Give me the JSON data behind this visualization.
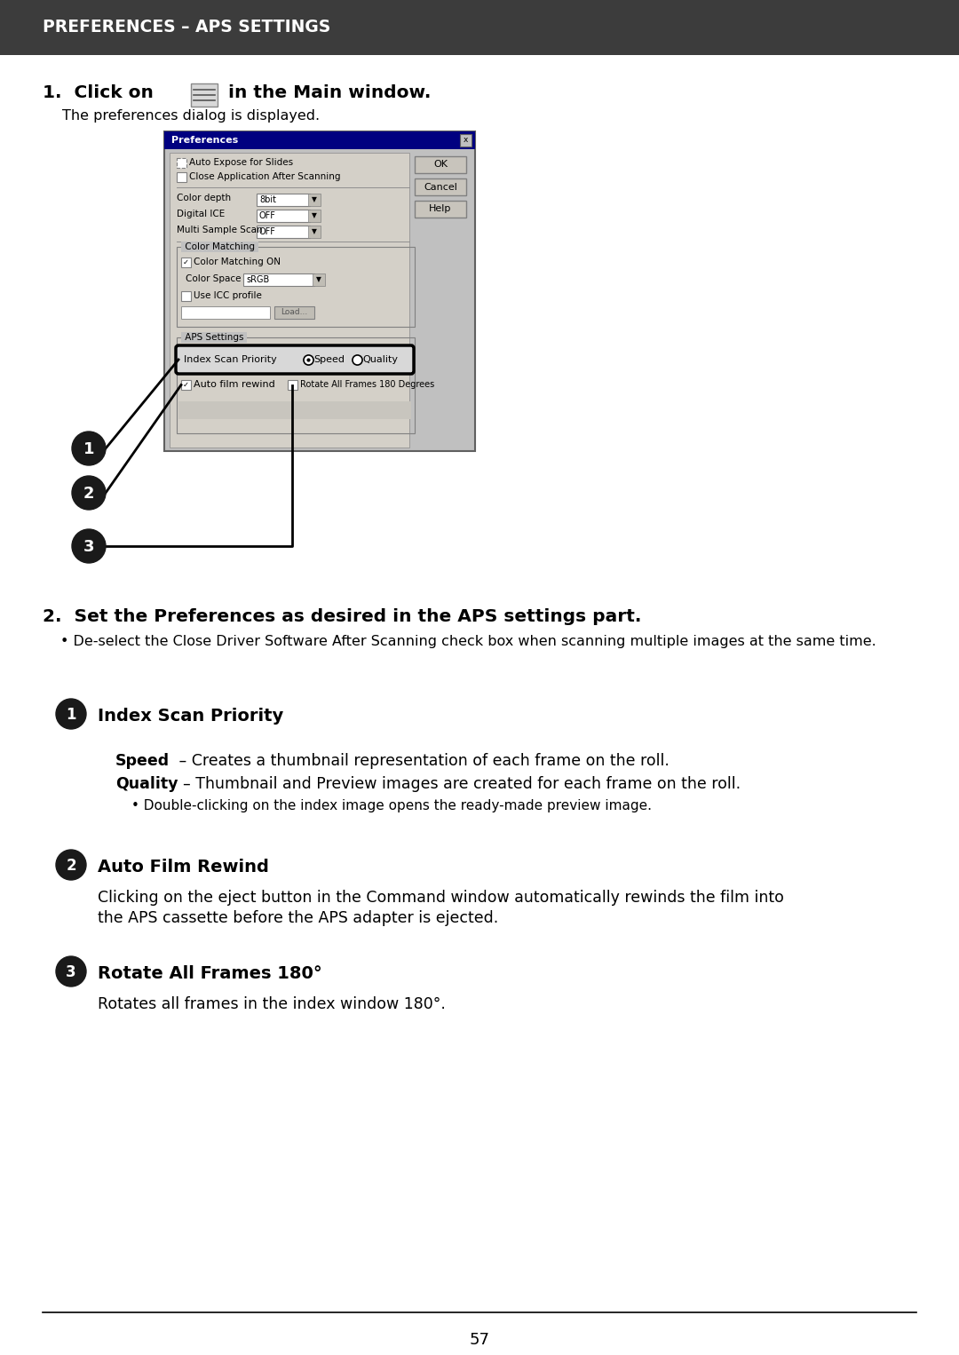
{
  "title": "PREFERENCES – APS SETTINGS",
  "title_bg": "#3c3c3c",
  "title_color": "#ffffff",
  "page_bg": "#ffffff",
  "page_number": "57",
  "step1_text1": "1.  Click on",
  "step1_text2": " in the Main window.",
  "step1_sub": "The preferences dialog is displayed.",
  "step2_text": "2.  Set the Preferences as desired in the APS settings part.",
  "step2_sub": "• De-select the Close Driver Software After Scanning check box when scanning multiple images at the same time.",
  "item1_title": "Index Scan Priority",
  "item1_speed_bold": "Speed",
  "item1_speed_text": "   – Creates a thumbnail representation of each frame on the roll.",
  "item1_quality_bold": "Quality",
  "item1_quality_text": "  – Thumbnail and Preview images are created for each frame on the roll.",
  "item1_bullet": "• Double-clicking on the index image opens the ready-made preview image.",
  "item2_title": "Auto Film Rewind",
  "item2_text1": "Clicking on the eject button in the Command window automatically rewinds the film into",
  "item2_text2": "the APS cassette before the APS adapter is ejected.",
  "item3_title": "Rotate All Frames 180°",
  "item3_text": "Rotates all frames in the index window 180°.",
  "circle_color": "#1a1a1a",
  "circle_text_color": "#ffffff",
  "dlg_bg": "#c0c0c0",
  "dlg_title_bg": "#000080",
  "dlg_title_text": "Preferences"
}
